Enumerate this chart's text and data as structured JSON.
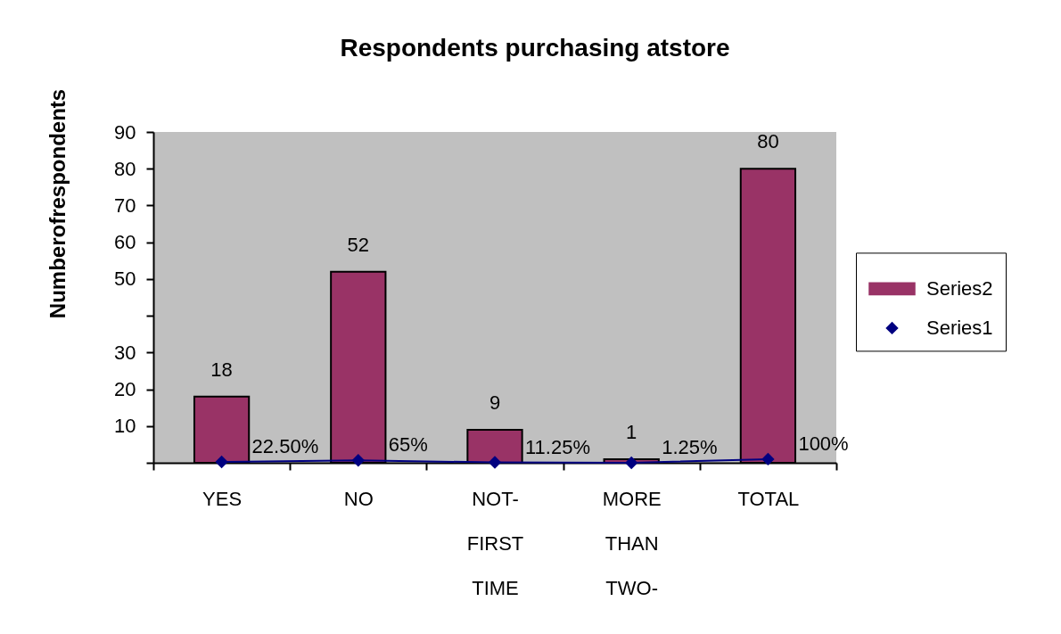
{
  "chart_data": {
    "type": "bar",
    "title": "Respondents purchasing atstore",
    "ylabel": "Numberofrespondents",
    "categories": [
      "YES",
      "NO",
      "NOT-FIRST TIME",
      "MORE THAN TWO-",
      "TOTAL"
    ],
    "series": [
      {
        "name": "Series2",
        "color": "#993366",
        "values": [
          18,
          52,
          9,
          1,
          80
        ],
        "value_labels": [
          "18",
          "52",
          "9",
          "1",
          "80"
        ]
      },
      {
        "name": "Series1",
        "type": "line",
        "color": "#000080",
        "values": [
          0.225,
          0.65,
          0.1125,
          0.0125,
          1
        ],
        "value_labels": [
          "22.50%",
          "65%",
          "11.25%",
          "1.25%",
          "100%"
        ]
      }
    ],
    "ylim": [
      0,
      90
    ],
    "yticks": [
      {
        "value": 0,
        "label": null
      },
      10,
      20,
      30,
      {
        "value": 40,
        "label": null
      },
      50,
      60,
      70,
      80,
      90
    ],
    "grid": false,
    "legend": "right",
    "marker": "diamond"
  }
}
